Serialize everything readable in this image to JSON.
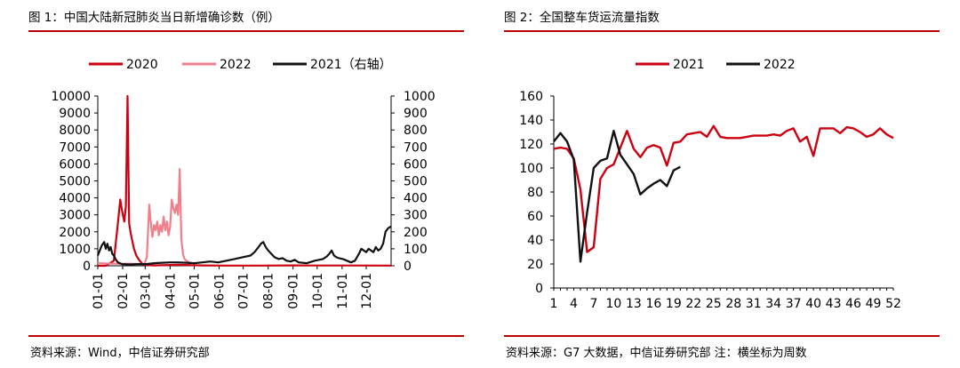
{
  "figures": [
    {
      "title": "图 1：中国大陆新冠肺炎当日新增确诊数（例）",
      "source": "资料来源：Wind，中信证券研究部",
      "chart_data": {
        "type": "line",
        "xlabel": "",
        "ylabel": "",
        "x_tick_labels": [
          "01-01",
          "02-01",
          "03-01",
          "04-01",
          "05-01",
          "06-01",
          "07-01",
          "08-01",
          "09-01",
          "10-01",
          "11-01",
          "12-01"
        ],
        "y_left": {
          "ticks": [
            "0",
            "1000",
            "2000",
            "3000",
            "4000",
            "5000",
            "6000",
            "7000",
            "8000",
            "9000",
            "10000"
          ],
          "range": [
            0,
            10000
          ]
        },
        "y_right": {
          "ticks": [
            "0",
            "100",
            "200",
            "300",
            "400",
            "500",
            "600",
            "700",
            "800",
            "900",
            "1000"
          ],
          "range": [
            0,
            1000
          ]
        },
        "legend_position": "top",
        "grid": false,
        "series": [
          {
            "name": "2020",
            "axis": "left",
            "color": "#cc0011",
            "points": [
              [
                0,
                0
              ],
              [
                10,
                0
              ],
              [
                20,
                300
              ],
              [
                25,
                2500
              ],
              [
                28,
                3900
              ],
              [
                30,
                3300
              ],
              [
                33,
                2600
              ],
              [
                35,
                3500
              ],
              [
                37,
                10000
              ],
              [
                39,
                2500
              ],
              [
                41,
                1900
              ],
              [
                45,
                1000
              ],
              [
                48,
                600
              ],
              [
                52,
                300
              ],
              [
                56,
                100
              ],
              [
                60,
                40
              ],
              [
                70,
                20
              ],
              [
                100,
                60
              ],
              [
                130,
                20
              ],
              [
                160,
                10
              ],
              [
                200,
                10
              ],
              [
                240,
                20
              ],
              [
                280,
                15
              ],
              [
                320,
                15
              ],
              [
                365,
                10
              ]
            ]
          },
          {
            "name": "2022",
            "axis": "left",
            "color": "#f07f8b",
            "points": [
              [
                0,
                150
              ],
              [
                20,
                120
              ],
              [
                40,
                120
              ],
              [
                58,
                100
              ],
              [
                61,
                500
              ],
              [
                64,
                3600
              ],
              [
                66,
                2500
              ],
              [
                68,
                1700
              ],
              [
                70,
                2400
              ],
              [
                72,
                2100
              ],
              [
                74,
                2600
              ],
              [
                76,
                1800
              ],
              [
                78,
                2400
              ],
              [
                80,
                2000
              ],
              [
                82,
                2900
              ],
              [
                84,
                2100
              ],
              [
                86,
                2600
              ],
              [
                88,
                1800
              ],
              [
                90,
                2300
              ],
              [
                92,
                3900
              ],
              [
                94,
                3400
              ],
              [
                96,
                3100
              ],
              [
                98,
                3600
              ],
              [
                100,
                3000
              ],
              [
                102,
                5700
              ],
              [
                104,
                1600
              ],
              [
                106,
                700
              ],
              [
                108,
                400
              ],
              [
                110,
                300
              ],
              [
                114,
                200
              ],
              [
                118,
                100
              ]
            ]
          },
          {
            "name": "2021（右轴）",
            "axis": "right",
            "color": "#111111",
            "points": [
              [
                0,
                60
              ],
              [
                5,
                120
              ],
              [
                8,
                140
              ],
              [
                10,
                100
              ],
              [
                12,
                130
              ],
              [
                14,
                90
              ],
              [
                16,
                110
              ],
              [
                18,
                70
              ],
              [
                20,
                60
              ],
              [
                22,
                40
              ],
              [
                25,
                20
              ],
              [
                30,
                10
              ],
              [
                40,
                8
              ],
              [
                50,
                10
              ],
              [
                60,
                10
              ],
              [
                70,
                15
              ],
              [
                80,
                18
              ],
              [
                90,
                20
              ],
              [
                100,
                20
              ],
              [
                110,
                18
              ],
              [
                120,
                15
              ],
              [
                130,
                20
              ],
              [
                140,
                25
              ],
              [
                150,
                20
              ],
              [
                160,
                30
              ],
              [
                170,
                40
              ],
              [
                180,
                50
              ],
              [
                190,
                60
              ],
              [
                195,
                80
              ],
              [
                200,
                110
              ],
              [
                203,
                130
              ],
              [
                206,
                140
              ],
              [
                209,
                110
              ],
              [
                212,
                90
              ],
              [
                216,
                70
              ],
              [
                220,
                50
              ],
              [
                225,
                40
              ],
              [
                230,
                45
              ],
              [
                235,
                30
              ],
              [
                240,
                25
              ],
              [
                245,
                35
              ],
              [
                250,
                20
              ],
              [
                260,
                15
              ],
              [
                270,
                30
              ],
              [
                280,
                40
              ],
              [
                285,
                55
              ],
              [
                288,
                70
              ],
              [
                291,
                90
              ],
              [
                294,
                60
              ],
              [
                297,
                50
              ],
              [
                300,
                45
              ],
              [
                305,
                40
              ],
              [
                310,
                30
              ],
              [
                315,
                20
              ],
              [
                320,
                30
              ],
              [
                325,
                70
              ],
              [
                328,
                100
              ],
              [
                331,
                90
              ],
              [
                334,
                80
              ],
              [
                337,
                100
              ],
              [
                340,
                90
              ],
              [
                343,
                80
              ],
              [
                346,
                110
              ],
              [
                349,
                90
              ],
              [
                352,
                100
              ],
              [
                355,
                130
              ],
              [
                358,
                200
              ],
              [
                361,
                220
              ],
              [
                364,
                230
              ],
              [
                365,
                230
              ]
            ]
          }
        ]
      }
    },
    {
      "title": "图 2：全国整车货运流量指数",
      "source": "资料来源：G7 大数据，中信证券研究部 注：横坐标为周数",
      "chart_data": {
        "type": "line",
        "xlabel": "",
        "ylabel": "",
        "x_ticks": [
          1,
          4,
          7,
          10,
          13,
          16,
          19,
          22,
          25,
          28,
          31,
          34,
          37,
          40,
          43,
          46,
          49,
          52
        ],
        "x_range": [
          1,
          52
        ],
        "y_ticks": [
          0,
          20,
          40,
          60,
          80,
          100,
          120,
          140,
          160
        ],
        "y_range": [
          0,
          160
        ],
        "legend_position": "top",
        "grid": false,
        "series": [
          {
            "name": "2021",
            "color": "#cc0011",
            "x": [
              1,
              2,
              3,
              4,
              5,
              6,
              7,
              8,
              9,
              10,
              11,
              12,
              13,
              14,
              15,
              16,
              17,
              18,
              19,
              20,
              21,
              22,
              23,
              24,
              25,
              26,
              27,
              28,
              29,
              30,
              31,
              32,
              33,
              34,
              35,
              36,
              37,
              38,
              39,
              40,
              41,
              42,
              43,
              44,
              45,
              46,
              47,
              48,
              49,
              50,
              51,
              52
            ],
            "values": [
              116,
              117,
              116,
              108,
              82,
              30,
              34,
              91,
              100,
              103,
              117,
              131,
              116,
              109,
              117,
              119,
              117,
              102,
              121,
              122,
              128,
              129,
              130,
              126,
              135,
              126,
              125,
              125,
              125,
              126,
              127,
              127,
              127,
              128,
              127,
              131,
              133,
              122,
              126,
              110,
              133,
              133,
              133,
              129,
              134,
              133,
              130,
              126,
              128,
              133,
              128,
              125
            ]
          },
          {
            "name": "2022",
            "color": "#111111",
            "x": [
              1,
              2,
              3,
              4,
              5,
              6,
              7,
              8,
              9,
              10,
              11,
              12,
              13,
              14,
              15,
              16,
              17,
              18,
              19,
              20
            ],
            "values": [
              122,
              129,
              122,
              107,
              22,
              63,
              100,
              106,
              108,
              131,
              111,
              103,
              95,
              78,
              83,
              87,
              90,
              85,
              98,
              101
            ]
          }
        ]
      }
    }
  ]
}
